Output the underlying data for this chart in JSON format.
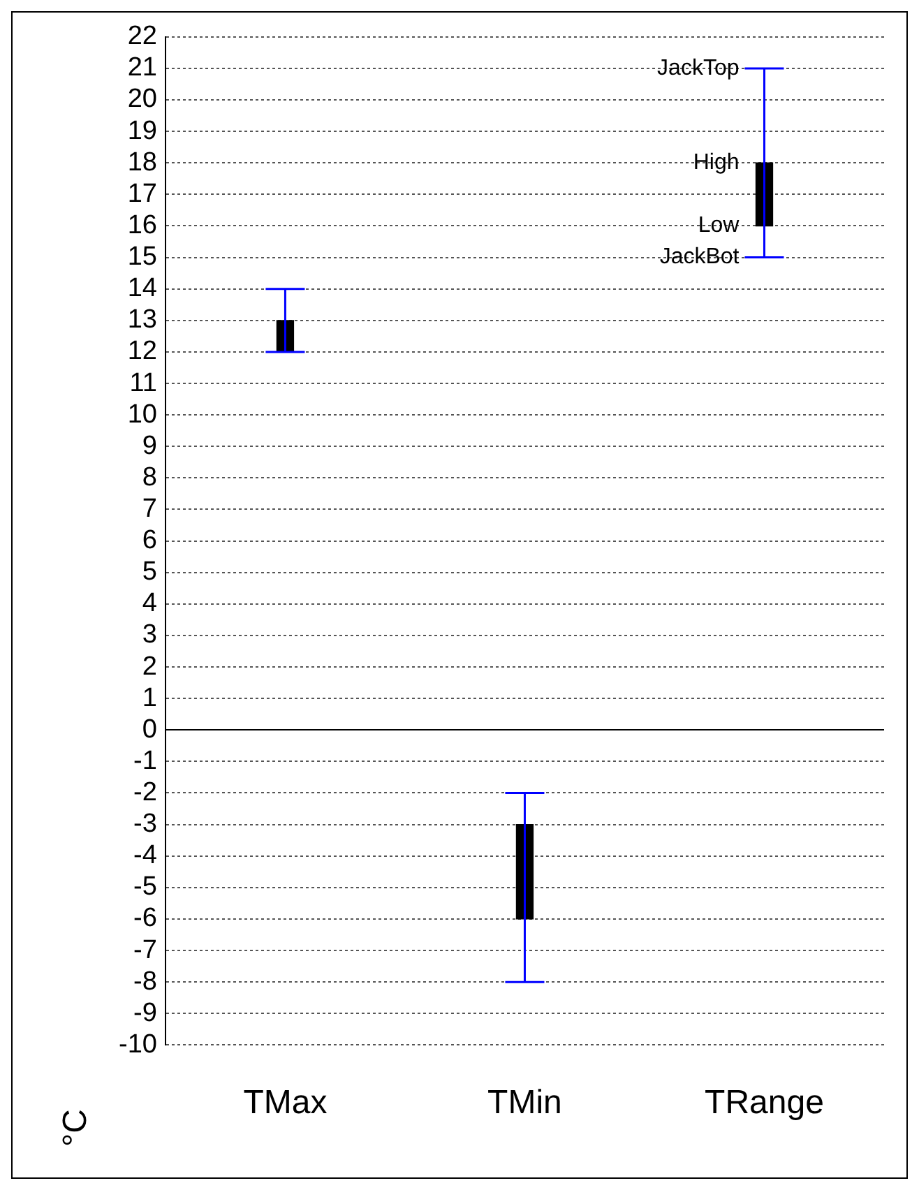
{
  "chart_data": {
    "type": "bar",
    "ylabel": "°C",
    "categories": [
      "TMax",
      "TMin",
      "TRange"
    ],
    "values": [
      1,
      3,
      2
    ],
    "base": [
      12,
      -6,
      16
    ],
    "errors": [
      [
        12,
        14
      ],
      [
        -8,
        -2
      ],
      [
        15,
        21
      ]
    ],
    "color": "#000000",
    "ylim": [
      -10,
      22
    ],
    "yticks": [
      -10,
      -9,
      -8,
      -7,
      -6,
      -5,
      -4,
      -3,
      -2,
      -1,
      0,
      1,
      2,
      3,
      4,
      5,
      6,
      7,
      8,
      9,
      10,
      11,
      12,
      13,
      14,
      15,
      16,
      17,
      18,
      19,
      20,
      21,
      22
    ],
    "grid": "y",
    "legend": false,
    "annotations": [
      {
        "text": "JackTop",
        "x": "TRange",
        "y": 21
      },
      {
        "text": "High",
        "x": "TRange",
        "y": 18
      },
      {
        "text": "Low",
        "x": "TRange",
        "y": 16
      },
      {
        "text": "JackBot",
        "x": "TRange",
        "y": 15
      }
    ]
  }
}
